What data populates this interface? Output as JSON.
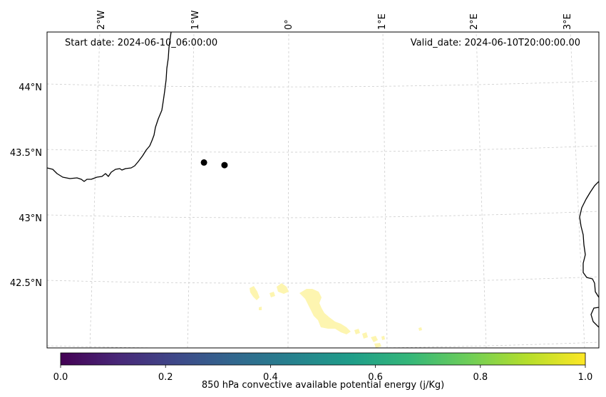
{
  "map": {
    "annotations": {
      "start": "Start date: 2024-06-10_06:00:00",
      "valid": "Valid_date: 2024-06-10T20:00:00.00"
    },
    "lon_ticks": [
      "2°W",
      "1°W",
      "0°",
      "1°E",
      "2°E",
      "3°E"
    ],
    "lat_ticks": [
      "44°N",
      "43.5°N",
      "43°N",
      "42.5°N"
    ],
    "points": [
      {
        "lon": -0.9,
        "lat": 43.4
      },
      {
        "lon": -0.68,
        "lat": 43.38
      }
    ],
    "colors": {
      "coast": "#000000",
      "grid": "#cccccc",
      "cape_fill": "#fdf5b0",
      "marker": "#000000"
    }
  },
  "colorbar": {
    "label": "850 hPa convective available potential energy (j/Kg)",
    "ticks": [
      "0.0",
      "0.2",
      "0.4",
      "0.6",
      "0.8",
      "1.0"
    ],
    "range": [
      0,
      1
    ],
    "colormap": "viridis",
    "stops": [
      "#440154",
      "#482878",
      "#3e4989",
      "#31688e",
      "#26828e",
      "#1f9e89",
      "#35b779",
      "#6ece58",
      "#b5de2b",
      "#fde725"
    ]
  }
}
